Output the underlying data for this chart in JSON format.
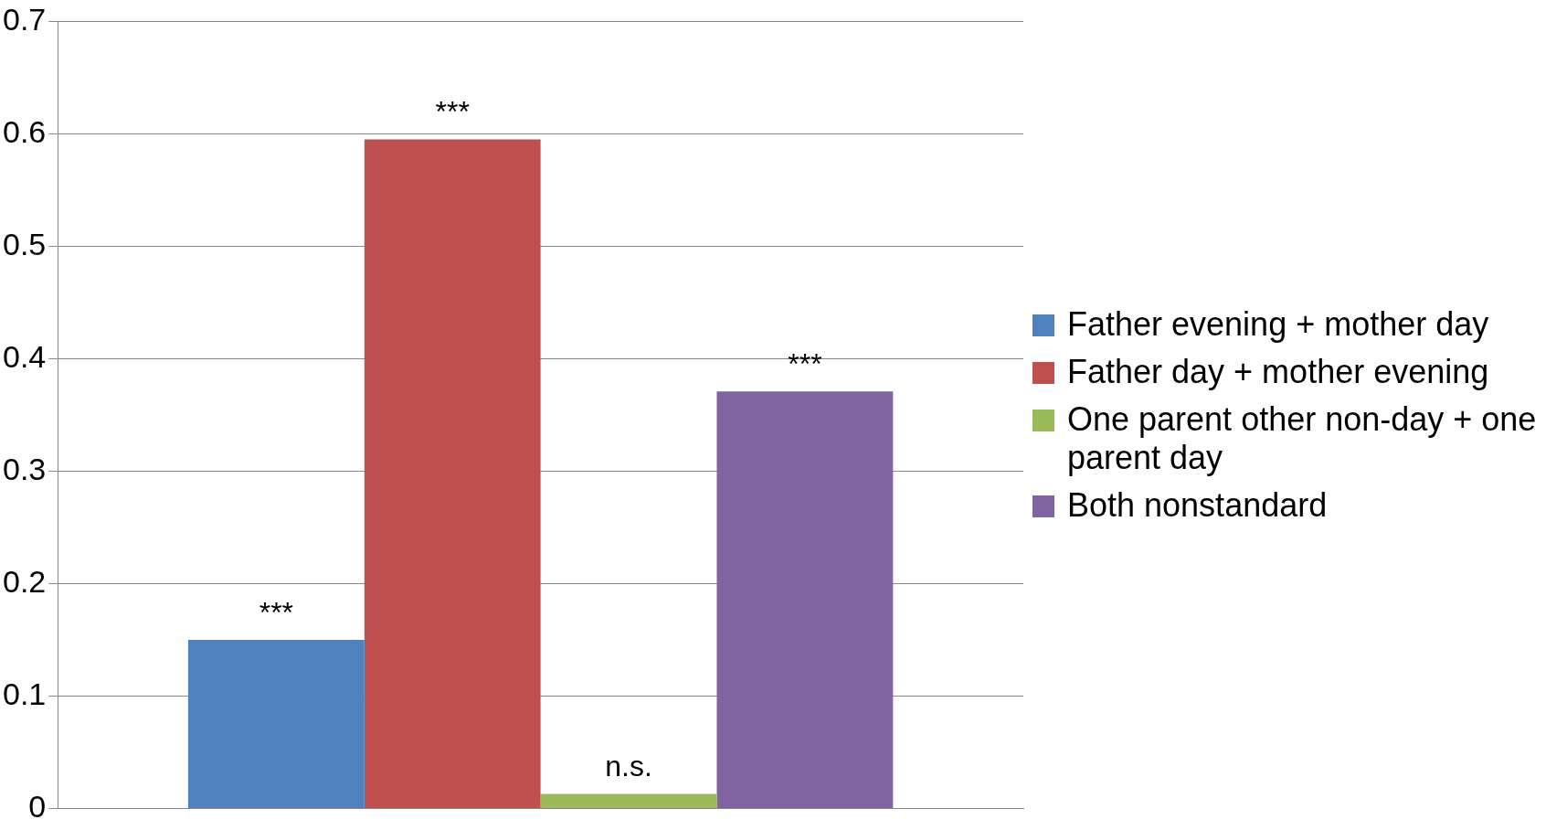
{
  "chart_data": {
    "type": "bar",
    "categories": [
      null
    ],
    "series": [
      {
        "name": "Father evening + mother day",
        "color": "#4f81bd",
        "values": [
          0.15
        ],
        "value_labels": [
          "***"
        ]
      },
      {
        "name": "Father day + mother evening",
        "color": "#c0504d",
        "values": [
          0.595
        ],
        "value_labels": [
          "***"
        ]
      },
      {
        "name": "One parent other non-day + one parent day",
        "color": "#9bbb59",
        "values": [
          0.013
        ],
        "value_labels": [
          "n.s."
        ]
      },
      {
        "name": "Both nonstandard",
        "color": "#8064a2",
        "values": [
          0.371
        ],
        "value_labels": [
          "***"
        ]
      }
    ],
    "ylim": [
      0,
      0.7
    ],
    "yticks": [
      0,
      0.1,
      0.2,
      0.3,
      0.4,
      0.5,
      0.6,
      0.7
    ],
    "grid": "y",
    "legend": "right"
  }
}
